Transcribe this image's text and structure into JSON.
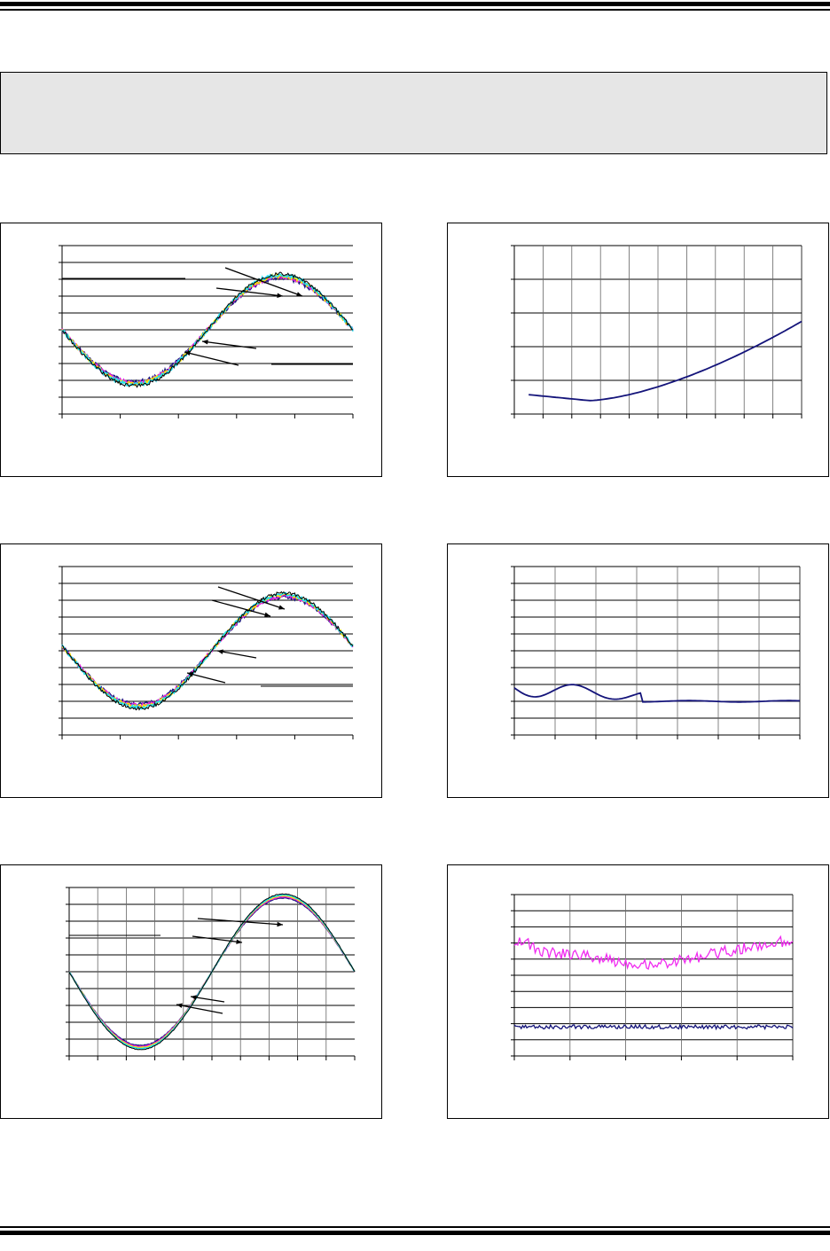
{
  "colors": {
    "rule": "#000000",
    "note_box_fill": "#e6e6e6",
    "series": [
      "#1a1a80",
      "#e020e0",
      "#ffe000",
      "#20e0f0",
      "#000000"
    ],
    "navy": "#14147a",
    "magenta": "#f02cf0"
  },
  "charts": [
    {
      "id": "fig-1",
      "type": "line",
      "shape": "sine-family",
      "y_ticks": 10,
      "x_ticks": 5,
      "x_grid": false,
      "amp": 0.32,
      "noise": 0.022,
      "phase_deg": 0
    },
    {
      "id": "fig-2",
      "type": "line",
      "shape": "curve",
      "y_ticks": 5,
      "x_ticks": 10,
      "x_grid": true
    },
    {
      "id": "fig-3",
      "type": "line",
      "shape": "sine-family",
      "y_ticks": 10,
      "x_ticks": 5,
      "x_grid": false,
      "amp": 0.33,
      "noise": 0.02,
      "phase_deg": -5
    },
    {
      "id": "fig-4",
      "type": "line",
      "shape": "flat-wavy",
      "y_ticks": 10,
      "x_ticks": 7,
      "x_grid": true
    },
    {
      "id": "fig-5",
      "type": "line",
      "shape": "sine-family",
      "y_ticks": 10,
      "x_ticks": 10,
      "x_grid": true,
      "amp": 0.45,
      "noise": 0.004,
      "phase_deg": 0
    },
    {
      "id": "fig-6",
      "type": "line",
      "shape": "two-noisy",
      "y_ticks": 10,
      "x_ticks": 5,
      "x_grid": true
    }
  ]
}
